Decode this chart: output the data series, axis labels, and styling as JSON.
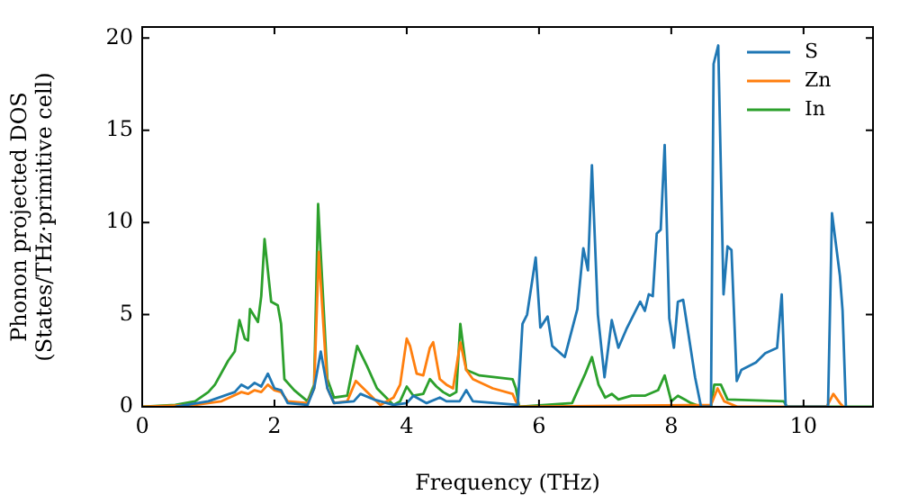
{
  "chart_data": {
    "type": "line",
    "xlabel": "Frequency (THz)",
    "ylabel": "Phonon projected DOS\n(States/THz·primitive cell)",
    "xlim": [
      0,
      11.05
    ],
    "ylim": [
      0,
      20.6
    ],
    "xticks": [
      0,
      2,
      4,
      6,
      8,
      10
    ],
    "yticks": [
      0,
      5,
      10,
      15,
      20
    ],
    "grid": false,
    "legend": "top right",
    "marker": "none",
    "line_style": "solid",
    "series": [
      {
        "name": "S",
        "color": "#1f77b4",
        "x": [
          0.5,
          1.0,
          1.4,
          1.5,
          1.6,
          1.7,
          1.8,
          1.9,
          2.0,
          2.1,
          2.2,
          2.5,
          2.6,
          2.7,
          2.8,
          2.9,
          3.2,
          3.3,
          3.5,
          3.8,
          4.0,
          4.1,
          4.3,
          4.5,
          4.6,
          4.8,
          4.9,
          5.0,
          5.68,
          5.75,
          5.82,
          5.95,
          6.02,
          6.13,
          6.2,
          6.39,
          6.58,
          6.67,
          6.74,
          6.8,
          6.89,
          6.99,
          7.1,
          7.2,
          7.32,
          7.53,
          7.6,
          7.66,
          7.72,
          7.78,
          7.84,
          7.9,
          7.97,
          8.04,
          8.1,
          8.18,
          8.36,
          8.45,
          8.6,
          8.64,
          8.71,
          8.79,
          8.85,
          8.91,
          8.99,
          9.06,
          9.28,
          9.42,
          9.6,
          9.67,
          9.73,
          10.37,
          10.43,
          10.55,
          10.59,
          10.64
        ],
        "values": [
          0,
          0.3,
          0.8,
          1.2,
          1.0,
          1.3,
          1.1,
          1.8,
          1.0,
          0.9,
          0.2,
          0.1,
          1.0,
          3.0,
          1.0,
          0.2,
          0.3,
          0.7,
          0.4,
          0.1,
          0.2,
          0.6,
          0.2,
          0.5,
          0.3,
          0.3,
          0.9,
          0.3,
          0.1,
          4.5,
          5.0,
          8.1,
          4.3,
          4.9,
          3.3,
          2.7,
          5.3,
          8.6,
          7.4,
          13.1,
          5.0,
          1.6,
          4.7,
          3.2,
          4.2,
          5.7,
          5.2,
          6.1,
          6.0,
          9.4,
          9.6,
          14.2,
          4.8,
          3.2,
          5.7,
          5.8,
          1.6,
          0,
          0,
          18.6,
          19.6,
          6.1,
          8.7,
          8.5,
          1.4,
          2.0,
          2.4,
          2.9,
          3.2,
          6.1,
          0,
          0,
          10.5,
          7.1,
          5.2,
          0
        ]
      },
      {
        "name": "Zn",
        "color": "#ff7f0e",
        "x": [
          0,
          0.8,
          1.2,
          1.5,
          1.6,
          1.7,
          1.8,
          1.9,
          2.0,
          2.1,
          2.2,
          2.5,
          2.6,
          2.67,
          2.8,
          2.9,
          3.1,
          3.23,
          3.4,
          3.6,
          3.8,
          3.9,
          4.0,
          4.05,
          4.15,
          4.25,
          4.35,
          4.4,
          4.5,
          4.6,
          4.7,
          4.81,
          4.9,
          5.0,
          5.3,
          5.6,
          5.65,
          5.7,
          8.6,
          8.7,
          8.8,
          9.0,
          10.35,
          10.45,
          10.55,
          10.6
        ],
        "values": [
          0,
          0.1,
          0.3,
          0.8,
          0.7,
          0.9,
          0.8,
          1.2,
          0.9,
          0.8,
          0.3,
          0.2,
          1.0,
          8.4,
          1.0,
          0.2,
          0.3,
          1.4,
          0.8,
          0.1,
          0.5,
          1.2,
          3.7,
          3.3,
          1.8,
          1.7,
          3.2,
          3.5,
          1.5,
          1.2,
          1.0,
          3.5,
          2.0,
          1.5,
          1.0,
          0.7,
          0.3,
          0,
          0.1,
          1.0,
          0.3,
          0,
          0,
          0.7,
          0.2,
          0
        ]
      },
      {
        "name": "In",
        "color": "#2ca02c",
        "x": [
          0,
          0.5,
          0.8,
          1.0,
          1.1,
          1.3,
          1.4,
          1.47,
          1.55,
          1.6,
          1.63,
          1.75,
          1.8,
          1.85,
          1.95,
          2.05,
          2.1,
          2.15,
          2.3,
          2.5,
          2.6,
          2.66,
          2.8,
          2.9,
          3.1,
          3.25,
          3.4,
          3.55,
          3.8,
          3.9,
          4.0,
          4.1,
          4.25,
          4.35,
          4.45,
          4.55,
          4.65,
          4.75,
          4.81,
          4.9,
          5.1,
          5.6,
          5.65,
          5.7,
          6.5,
          6.7,
          6.8,
          6.9,
          7.0,
          7.1,
          7.2,
          7.4,
          7.6,
          7.8,
          7.9,
          8.0,
          8.1,
          8.3,
          8.45,
          8.6,
          8.65,
          8.75,
          8.85,
          9.7,
          9.75,
          11.05
        ],
        "values": [
          0,
          0.1,
          0.3,
          0.8,
          1.2,
          2.5,
          3.0,
          4.7,
          3.7,
          3.6,
          5.3,
          4.6,
          6.0,
          9.1,
          5.7,
          5.5,
          4.5,
          1.5,
          0.9,
          0.3,
          1.2,
          11.0,
          1.5,
          0.5,
          0.6,
          3.3,
          2.2,
          1.0,
          0.1,
          0.3,
          1.1,
          0.6,
          0.7,
          1.5,
          1.1,
          0.8,
          0.6,
          0.8,
          4.5,
          2.0,
          1.7,
          1.5,
          1.0,
          0,
          0.2,
          1.8,
          2.7,
          1.2,
          0.5,
          0.7,
          0.4,
          0.6,
          0.6,
          0.9,
          1.7,
          0.3,
          0.6,
          0.2,
          0,
          0,
          1.2,
          1.2,
          0.4,
          0.3,
          0,
          0
        ]
      }
    ]
  }
}
